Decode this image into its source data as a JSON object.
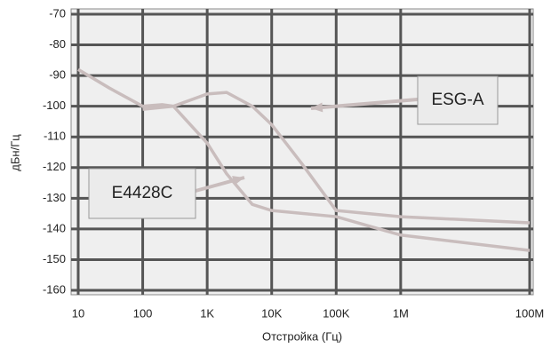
{
  "chart_data": {
    "type": "line",
    "y_label": "дБн/Гц",
    "x_label": "Отстройка (Гц)",
    "log_x": true,
    "grid": true,
    "xlim": [
      10,
      100000000
    ],
    "ylim": [
      -160,
      -70
    ],
    "xticks": [
      10,
      100,
      {
        "value": 1000,
        "label": "1K"
      },
      {
        "value": 10000,
        "label": "10K"
      },
      {
        "value": 100000,
        "label": "100K"
      },
      {
        "value": 1000000,
        "label": "1M"
      },
      {
        "value": 100000000,
        "label": "100M"
      }
    ],
    "yticks": [
      -70,
      -80,
      -90,
      -100,
      -110,
      -120,
      -130,
      -140,
      -150,
      -160
    ],
    "series": [
      {
        "name": "E4428C",
        "color": "#c9bdbd",
        "x": [
          10,
          30,
          100,
          200,
          300,
          1000,
          2000,
          5000,
          10000,
          100000,
          1000000,
          100000000
        ],
        "values": [
          -88,
          -94,
          -100,
          -99.5,
          -100,
          -112,
          -122,
          -132,
          -134,
          -136,
          -142,
          -147
        ]
      },
      {
        "name": "ESG-A",
        "color": "#c9bdbd",
        "x": [
          100,
          300,
          1000,
          2000,
          5000,
          10000,
          30000,
          100000,
          1000000,
          100000000
        ],
        "values": [
          -101,
          -100,
          -96,
          -95.5,
          -100,
          -106,
          -119,
          -134,
          -136,
          -138
        ]
      }
    ]
  }
}
